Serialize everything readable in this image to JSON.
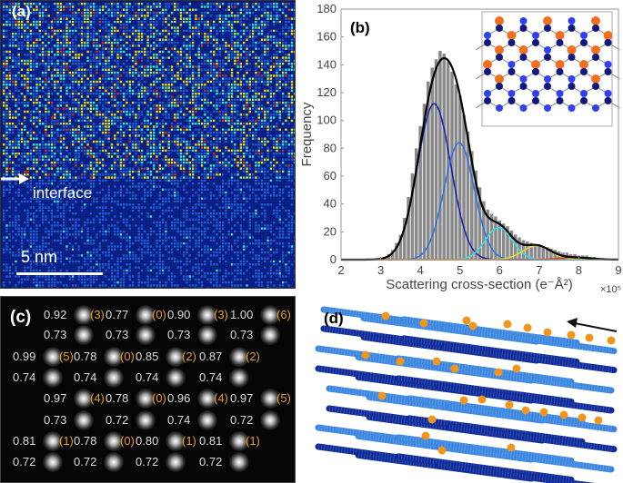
{
  "panel_a": {
    "label": "(a)",
    "interface_label": "interface",
    "scale_bar": "5 nm",
    "colors": {
      "background": "#0a1a6e",
      "level_0": "#0b2499",
      "level_1": "#1f5fe0",
      "level_2": "#3ee8e0",
      "level_3": "#f0e020",
      "level_4": "#e03020"
    }
  },
  "panel_b": {
    "label": "(b)"
  },
  "chart_data": {
    "type": "bar",
    "title": "",
    "xlabel": "Scattering cross-section (e⁻Å²)",
    "x_multiplier": "×10⁵",
    "ylabel": "Frequency",
    "xlim": [
      2,
      9
    ],
    "ylim": [
      0,
      180
    ],
    "xticks": [
      "2",
      "3",
      "4",
      "5",
      "6",
      "7",
      "8",
      "9"
    ],
    "yticks": [
      "0",
      "20",
      "40",
      "60",
      "80",
      "100",
      "120",
      "140",
      "160",
      "180"
    ],
    "bin_width": 0.1,
    "x": [
      3.0,
      3.1,
      3.2,
      3.3,
      3.4,
      3.5,
      3.6,
      3.7,
      3.8,
      3.9,
      4.0,
      4.1,
      4.2,
      4.3,
      4.4,
      4.5,
      4.6,
      4.7,
      4.8,
      4.9,
      5.0,
      5.1,
      5.2,
      5.3,
      5.4,
      5.5,
      5.6,
      5.7,
      5.8,
      5.9,
      6.0,
      6.1,
      6.2,
      6.3,
      6.4,
      6.5,
      6.6,
      6.7,
      6.8,
      6.9,
      7.0,
      7.1,
      7.2,
      7.3,
      7.4,
      7.5,
      7.6,
      7.7,
      7.8,
      7.9,
      8.0,
      8.1,
      8.2,
      8.3,
      8.4,
      8.5
    ],
    "values": [
      1,
      2,
      4,
      7,
      12,
      18,
      30,
      45,
      62,
      80,
      96,
      112,
      128,
      138,
      144,
      150,
      148,
      142,
      135,
      126,
      118,
      104,
      92,
      78,
      64,
      52,
      42,
      36,
      33,
      31,
      28,
      26,
      24,
      21,
      18,
      16,
      14,
      13,
      12,
      11,
      11,
      10,
      9,
      8,
      7,
      6,
      5,
      5,
      4,
      4,
      3,
      3,
      3,
      2,
      2,
      1
    ],
    "bar_color": "#8a8a8a",
    "fit_components": [
      {
        "amplitude": 112,
        "center": 4.35,
        "sigma": 0.42,
        "color": "#1a1ab0"
      },
      {
        "amplitude": 84,
        "center": 4.98,
        "sigma": 0.38,
        "color": "#2f6fe8"
      },
      {
        "amplitude": 23,
        "center": 5.98,
        "sigma": 0.34,
        "color": "#30e0e8"
      },
      {
        "amplitude": 10,
        "center": 6.93,
        "sigma": 0.35,
        "color": "#e8e020"
      },
      {
        "amplitude": 1.5,
        "center": 7.9,
        "sigma": 0.4,
        "color": "#e04010"
      }
    ],
    "fit_total_color": "#000000",
    "grid": false,
    "legend": "none",
    "inset_colors": {
      "top_site": "#f07020",
      "light_site": "#3040f0",
      "dark_site": "#101880",
      "bond": "#999999"
    }
  },
  "panel_c": {
    "label": "(c)",
    "rows": [
      {
        "offset": true,
        "items": [
          {
            "v": "0.92",
            "n": "(3)"
          },
          {
            "v": "0.77",
            "n": "(0)"
          },
          {
            "v": "0.90",
            "n": "(3)"
          },
          {
            "v": "1.00",
            "n": "(6)"
          }
        ]
      },
      {
        "offset": true,
        "items": [
          {
            "v": "0.73"
          },
          {
            "v": "0.73"
          },
          {
            "v": "0.73"
          },
          {
            "v": "0.73"
          }
        ]
      },
      {
        "offset": false,
        "items": [
          {
            "v": "0.99",
            "n": "(5)"
          },
          {
            "v": "0.78",
            "n": "(0)"
          },
          {
            "v": "0.85",
            "n": "(2)"
          },
          {
            "v": "0.87",
            "n": "(2)"
          }
        ]
      },
      {
        "offset": false,
        "items": [
          {
            "v": "0.74"
          },
          {
            "v": "0.74"
          },
          {
            "v": "0.74"
          },
          {
            "v": "0.74"
          }
        ]
      },
      {
        "offset": true,
        "items": [
          {
            "v": "0.97",
            "n": "(4)"
          },
          {
            "v": "0.78",
            "n": "(0)"
          },
          {
            "v": "0.96",
            "n": "(4)"
          },
          {
            "v": "0.97",
            "n": "(5)"
          }
        ]
      },
      {
        "offset": true,
        "items": [
          {
            "v": "0.73"
          },
          {
            "v": "0.72"
          },
          {
            "v": "0.74"
          },
          {
            "v": "0.72"
          }
        ]
      },
      {
        "offset": false,
        "items": [
          {
            "v": "0.81",
            "n": "(1)"
          },
          {
            "v": "0.78",
            "n": "(0)"
          },
          {
            "v": "0.80",
            "n": "(1)"
          },
          {
            "v": "0.81",
            "n": "(1)"
          }
        ]
      },
      {
        "offset": false,
        "items": [
          {
            "v": "0.72"
          },
          {
            "v": "0.72"
          },
          {
            "v": "0.72"
          },
          {
            "v": "0.72"
          }
        ]
      }
    ]
  },
  "panel_d": {
    "label": "(d)",
    "colors": {
      "light_rod": "#3a86e0",
      "dark_rod": "#0d2a9a",
      "dopant": "#f0961e"
    }
  }
}
